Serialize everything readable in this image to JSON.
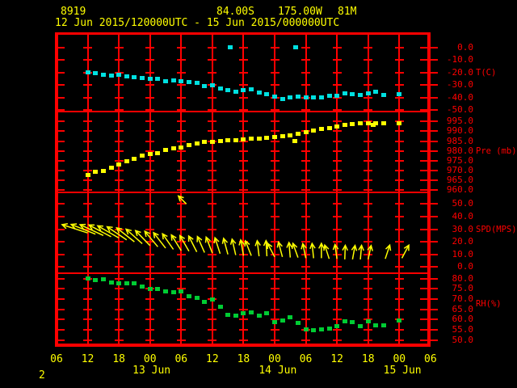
{
  "header": {
    "station_id": "8919",
    "latitude": "84.00S",
    "longitude": "175.00W",
    "elevation": "81M",
    "period": "12 Jun 2015/120000UTC - 15 Jun 2015/000000UTC"
  },
  "footer": {
    "page_number": "2"
  },
  "colors": {
    "background": "#000000",
    "grid": "#ff0000",
    "axis_text": "#ff0000",
    "time_text": "#ffff00",
    "temperature": "#00e0e0",
    "pressure": "#ffff00",
    "wind": "#ffff00",
    "humidity": "#00cc33"
  },
  "x_axis": {
    "hour_labels": [
      [
        "06",
        0
      ],
      [
        "12",
        6
      ],
      [
        "18",
        12
      ],
      [
        "00",
        18
      ],
      [
        "06",
        24
      ],
      [
        "12",
        30
      ],
      [
        "18",
        36
      ],
      [
        "00",
        42
      ],
      [
        "06",
        48
      ],
      [
        "12",
        54
      ],
      [
        "18",
        60
      ],
      [
        "00",
        66
      ],
      [
        "06",
        72
      ]
    ],
    "day_labels": [
      [
        "13 Jun",
        18.3
      ],
      [
        "14 Jun",
        42.6
      ],
      [
        "15 Jun",
        66.6
      ]
    ],
    "gridline_hours": [
      6,
      12,
      18,
      24,
      30,
      36,
      42,
      48,
      54,
      60,
      66
    ]
  },
  "panels": [
    {
      "id": "temp",
      "unit_label": "T(C)",
      "unit_value": -20,
      "ticks": [
        "0.0",
        "-10.0",
        "-20.0",
        "-30.0",
        "-40.0",
        "-50.0"
      ]
    },
    {
      "id": "pres",
      "unit_label": "Pre (mb)",
      "unit_value": 980,
      "ticks": [
        "995.0",
        "990.0",
        "985.0",
        "980.0",
        "975.0",
        "970.0",
        "965.0",
        "960.0"
      ]
    },
    {
      "id": "wind",
      "unit_label": "SPD(MPS)",
      "unit_value": 30,
      "ticks": [
        "50.0",
        "40.0",
        "30.0",
        "20.0",
        "10.0",
        "0.0"
      ]
    },
    {
      "id": "rh",
      "unit_label": "RH(%)",
      "unit_value": 67.5,
      "ticks": [
        "80.0",
        "75.0",
        "70.0",
        "65.0",
        "60.0",
        "55.0",
        "50.0"
      ]
    }
  ],
  "chart_data": {
    "type": "scatter",
    "title": "Meteogram station 8919 at 84.00S 175.00W 81M",
    "x_unit": "hours since 2015-06-12 06:00 UTC",
    "x_range": [
      0,
      72
    ],
    "series": [
      {
        "name": "temperature",
        "units": "C",
        "panel": "temp",
        "color": "#00e0e0",
        "ylim": [
          -50,
          0
        ],
        "points": [
          [
            6,
            -20.3
          ],
          [
            7.5,
            -20.8
          ],
          [
            9,
            -21.8
          ],
          [
            10.5,
            -22.3
          ],
          [
            12,
            -22.0
          ],
          [
            13.5,
            -23.2
          ],
          [
            15,
            -24.0
          ],
          [
            16.5,
            -24.6
          ],
          [
            18,
            -25.3
          ],
          [
            19.5,
            -25.0
          ],
          [
            21,
            -26.8
          ],
          [
            22.5,
            -26.3
          ],
          [
            24,
            -27.2
          ],
          [
            25.5,
            -27.9
          ],
          [
            27,
            -28.5
          ],
          [
            28.5,
            -31.0
          ],
          [
            30,
            -30.5
          ],
          [
            31.5,
            -33.2
          ],
          [
            33,
            -34.3
          ],
          [
            34.5,
            -35.8
          ],
          [
            36,
            -34.5
          ],
          [
            37.5,
            -33.8
          ],
          [
            39,
            -36.3
          ],
          [
            40.5,
            -37.2
          ],
          [
            42,
            -39.3
          ],
          [
            43.5,
            -41.0
          ],
          [
            45,
            -40.3
          ],
          [
            46.5,
            -39.3
          ],
          [
            48,
            -40.3
          ],
          [
            49.5,
            -39.7
          ],
          [
            51,
            -40.3
          ],
          [
            52.5,
            -39.0
          ],
          [
            54,
            -39.0
          ],
          [
            55.5,
            -36.9
          ],
          [
            57,
            -37.5
          ],
          [
            58.5,
            -37.9
          ],
          [
            60,
            -36.5
          ],
          [
            61.5,
            -35.8
          ],
          [
            63,
            -38.2
          ],
          [
            66,
            -37.1
          ]
        ]
      },
      {
        "name": "temperature-outliers",
        "units": "C",
        "panel": "temp",
        "color": "#00e0e0",
        "points": [
          [
            33.4,
            0.0
          ],
          [
            46.0,
            -0.3
          ]
        ]
      },
      {
        "name": "pressure",
        "units": "mb",
        "panel": "pres",
        "color": "#ffff00",
        "ylim": [
          960,
          995
        ],
        "points": [
          [
            6,
            967.7
          ],
          [
            7.5,
            969.1
          ],
          [
            9,
            969.9
          ],
          [
            10.5,
            971.3
          ],
          [
            12,
            973.0
          ],
          [
            13.5,
            974.6
          ],
          [
            15,
            976.1
          ],
          [
            16.5,
            977.5
          ],
          [
            18,
            978.5
          ],
          [
            19.5,
            978.8
          ],
          [
            21,
            980.3
          ],
          [
            22.5,
            981.2
          ],
          [
            24,
            981.8
          ],
          [
            25.5,
            982.9
          ],
          [
            27,
            983.7
          ],
          [
            28.5,
            984.4
          ],
          [
            30,
            984.7
          ],
          [
            31.5,
            985.1
          ],
          [
            33,
            985.4
          ],
          [
            34.5,
            985.5
          ],
          [
            36,
            985.7
          ],
          [
            37.5,
            986.1
          ],
          [
            39,
            986.4
          ],
          [
            40.5,
            986.8
          ],
          [
            42,
            987.2
          ],
          [
            43.5,
            987.5
          ],
          [
            45,
            988.0
          ],
          [
            45.9,
            984.8
          ],
          [
            46.5,
            988.6
          ],
          [
            48,
            989.6
          ],
          [
            49.5,
            990.4
          ],
          [
            51,
            991.4
          ],
          [
            52.5,
            991.8
          ],
          [
            54,
            992.4
          ],
          [
            55.5,
            993.2
          ],
          [
            57,
            993.8
          ],
          [
            58.5,
            994.0
          ],
          [
            60,
            994.2
          ],
          [
            61,
            993.4
          ],
          [
            61.5,
            994.2
          ],
          [
            63,
            994.2
          ],
          [
            66,
            994.2
          ]
        ]
      },
      {
        "name": "relative-humidity",
        "units": "%",
        "panel": "rh",
        "color": "#00cc33",
        "ylim": [
          50,
          80
        ],
        "points": [
          [
            6,
            80.2
          ],
          [
            7.5,
            79.2
          ],
          [
            9,
            79.5
          ],
          [
            10.5,
            78.0
          ],
          [
            12,
            77.8
          ],
          [
            13.5,
            77.6
          ],
          [
            15,
            77.6
          ],
          [
            16.5,
            76.2
          ],
          [
            18,
            74.9
          ],
          [
            19.5,
            75.1
          ],
          [
            21,
            73.8
          ],
          [
            22.5,
            73.4
          ],
          [
            24,
            73.8
          ],
          [
            25.5,
            71.5
          ],
          [
            27,
            70.8
          ],
          [
            28.5,
            68.5
          ],
          [
            30,
            69.9
          ],
          [
            31.5,
            66.2
          ],
          [
            33,
            62.5
          ],
          [
            34.5,
            61.8
          ],
          [
            36,
            63.1
          ],
          [
            37.5,
            63.6
          ],
          [
            39,
            62.0
          ],
          [
            40.5,
            63.3
          ],
          [
            42,
            58.7
          ],
          [
            43.5,
            59.6
          ],
          [
            45,
            61.0
          ],
          [
            46.5,
            58.3
          ],
          [
            48,
            55.4
          ],
          [
            49.5,
            54.7
          ],
          [
            51,
            55.1
          ],
          [
            52.5,
            55.6
          ],
          [
            54,
            56.7
          ],
          [
            55.5,
            59.3
          ],
          [
            57,
            58.7
          ],
          [
            58.5,
            56.7
          ],
          [
            60,
            59.3
          ],
          [
            61.5,
            57.3
          ],
          [
            63,
            57.0
          ],
          [
            66,
            59.6
          ]
        ]
      }
    ],
    "wind_arrows": {
      "name": "wind-speed-direction",
      "units": "MPS",
      "panel": "wind",
      "color": "#ffff00",
      "ylim": [
        0,
        50
      ],
      "arrows": [
        [
          6,
          27,
          162
        ],
        [
          7.5,
          26,
          158
        ],
        [
          9,
          25,
          155
        ],
        [
          10.5,
          24,
          152
        ],
        [
          12,
          23,
          150
        ],
        [
          13.5,
          21.5,
          146
        ],
        [
          15,
          20,
          142
        ],
        [
          16.5,
          18.5,
          138
        ],
        [
          18,
          17,
          134
        ],
        [
          19.5,
          16,
          130
        ],
        [
          21,
          15,
          128
        ],
        [
          22.5,
          14,
          125
        ],
        [
          24,
          13,
          122
        ],
        [
          25,
          50,
          135,
          14
        ],
        [
          25.5,
          12.5,
          120
        ],
        [
          27,
          12,
          117
        ],
        [
          28.5,
          11.5,
          114
        ],
        [
          30,
          11,
          111
        ],
        [
          31.5,
          10.5,
          108
        ],
        [
          33,
          10,
          105
        ],
        [
          34.5,
          9.5,
          103
        ],
        [
          36,
          9,
          100
        ],
        [
          37.5,
          9,
          112
        ],
        [
          39,
          8.5,
          97
        ],
        [
          40.5,
          8.5,
          93
        ],
        [
          42,
          8,
          118
        ],
        [
          43.5,
          8,
          105
        ],
        [
          45,
          7.5,
          95
        ],
        [
          46.5,
          7.5,
          110
        ],
        [
          48,
          7,
          102
        ],
        [
          49.5,
          7,
          96
        ],
        [
          51,
          7,
          90
        ],
        [
          52.5,
          6.5,
          108
        ],
        [
          54,
          6.5,
          98
        ],
        [
          55.5,
          6,
          88
        ],
        [
          57,
          6,
          80
        ],
        [
          58.5,
          6,
          85
        ],
        [
          60,
          6,
          78
        ],
        [
          63.3,
          6.5,
          72
        ],
        [
          66.5,
          7,
          62
        ]
      ]
    }
  }
}
